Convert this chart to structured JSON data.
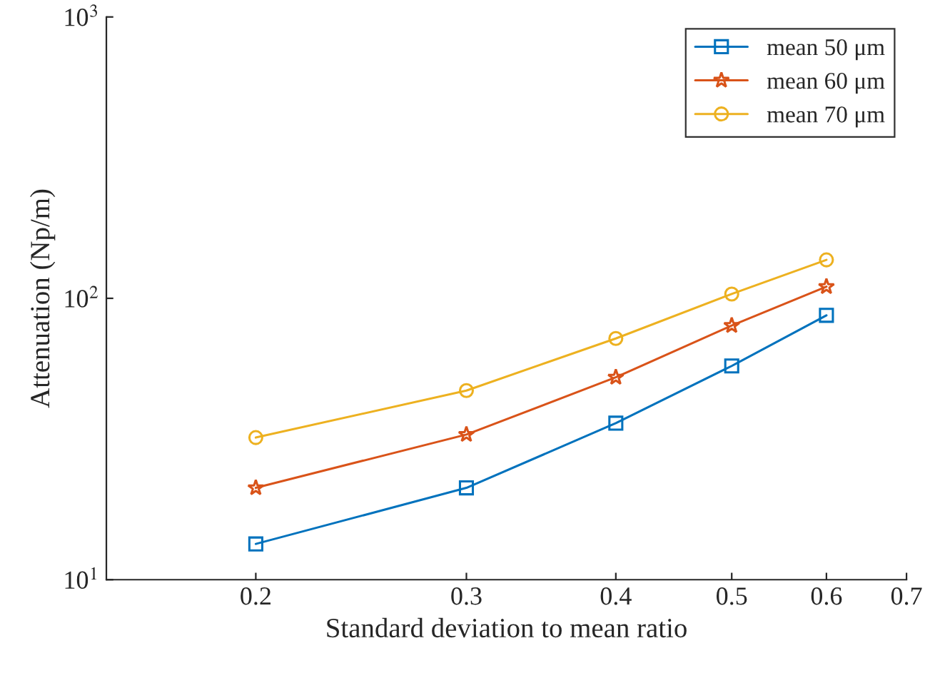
{
  "chart_data": {
    "type": "line",
    "xlabel": "Standard deviation to mean ratio",
    "ylabel": "Attenuation (Np/m)",
    "log": "xy",
    "x": [
      0.2,
      0.3,
      0.4,
      0.5,
      0.6
    ],
    "series": [
      {
        "name": "mean 50 μm",
        "color": "#0072bd",
        "marker": "square",
        "values": [
          13.4,
          21.2,
          36,
          57.5,
          87
        ]
      },
      {
        "name": "mean 60 μm",
        "color": "#d95319",
        "marker": "star",
        "values": [
          21.2,
          32.8,
          52.4,
          80,
          110
        ]
      },
      {
        "name": "mean 70 μm",
        "color": "#edb120",
        "marker": "circle",
        "values": [
          32,
          47,
          72,
          103.6,
          137
        ]
      }
    ],
    "xlim": [
      0.15,
      0.7
    ],
    "xticks": [
      0.2,
      0.3,
      0.4,
      0.5,
      0.6,
      0.7
    ],
    "ylim": [
      10,
      1000
    ],
    "yticks": [
      {
        "value": 10,
        "label": "10$^{1}$"
      },
      {
        "value": 100,
        "label": "10$^{2}$"
      },
      {
        "value": 1000,
        "label": "10$^{3}$"
      }
    ],
    "grid": false,
    "legend": "top right",
    "line_style": "solid"
  }
}
